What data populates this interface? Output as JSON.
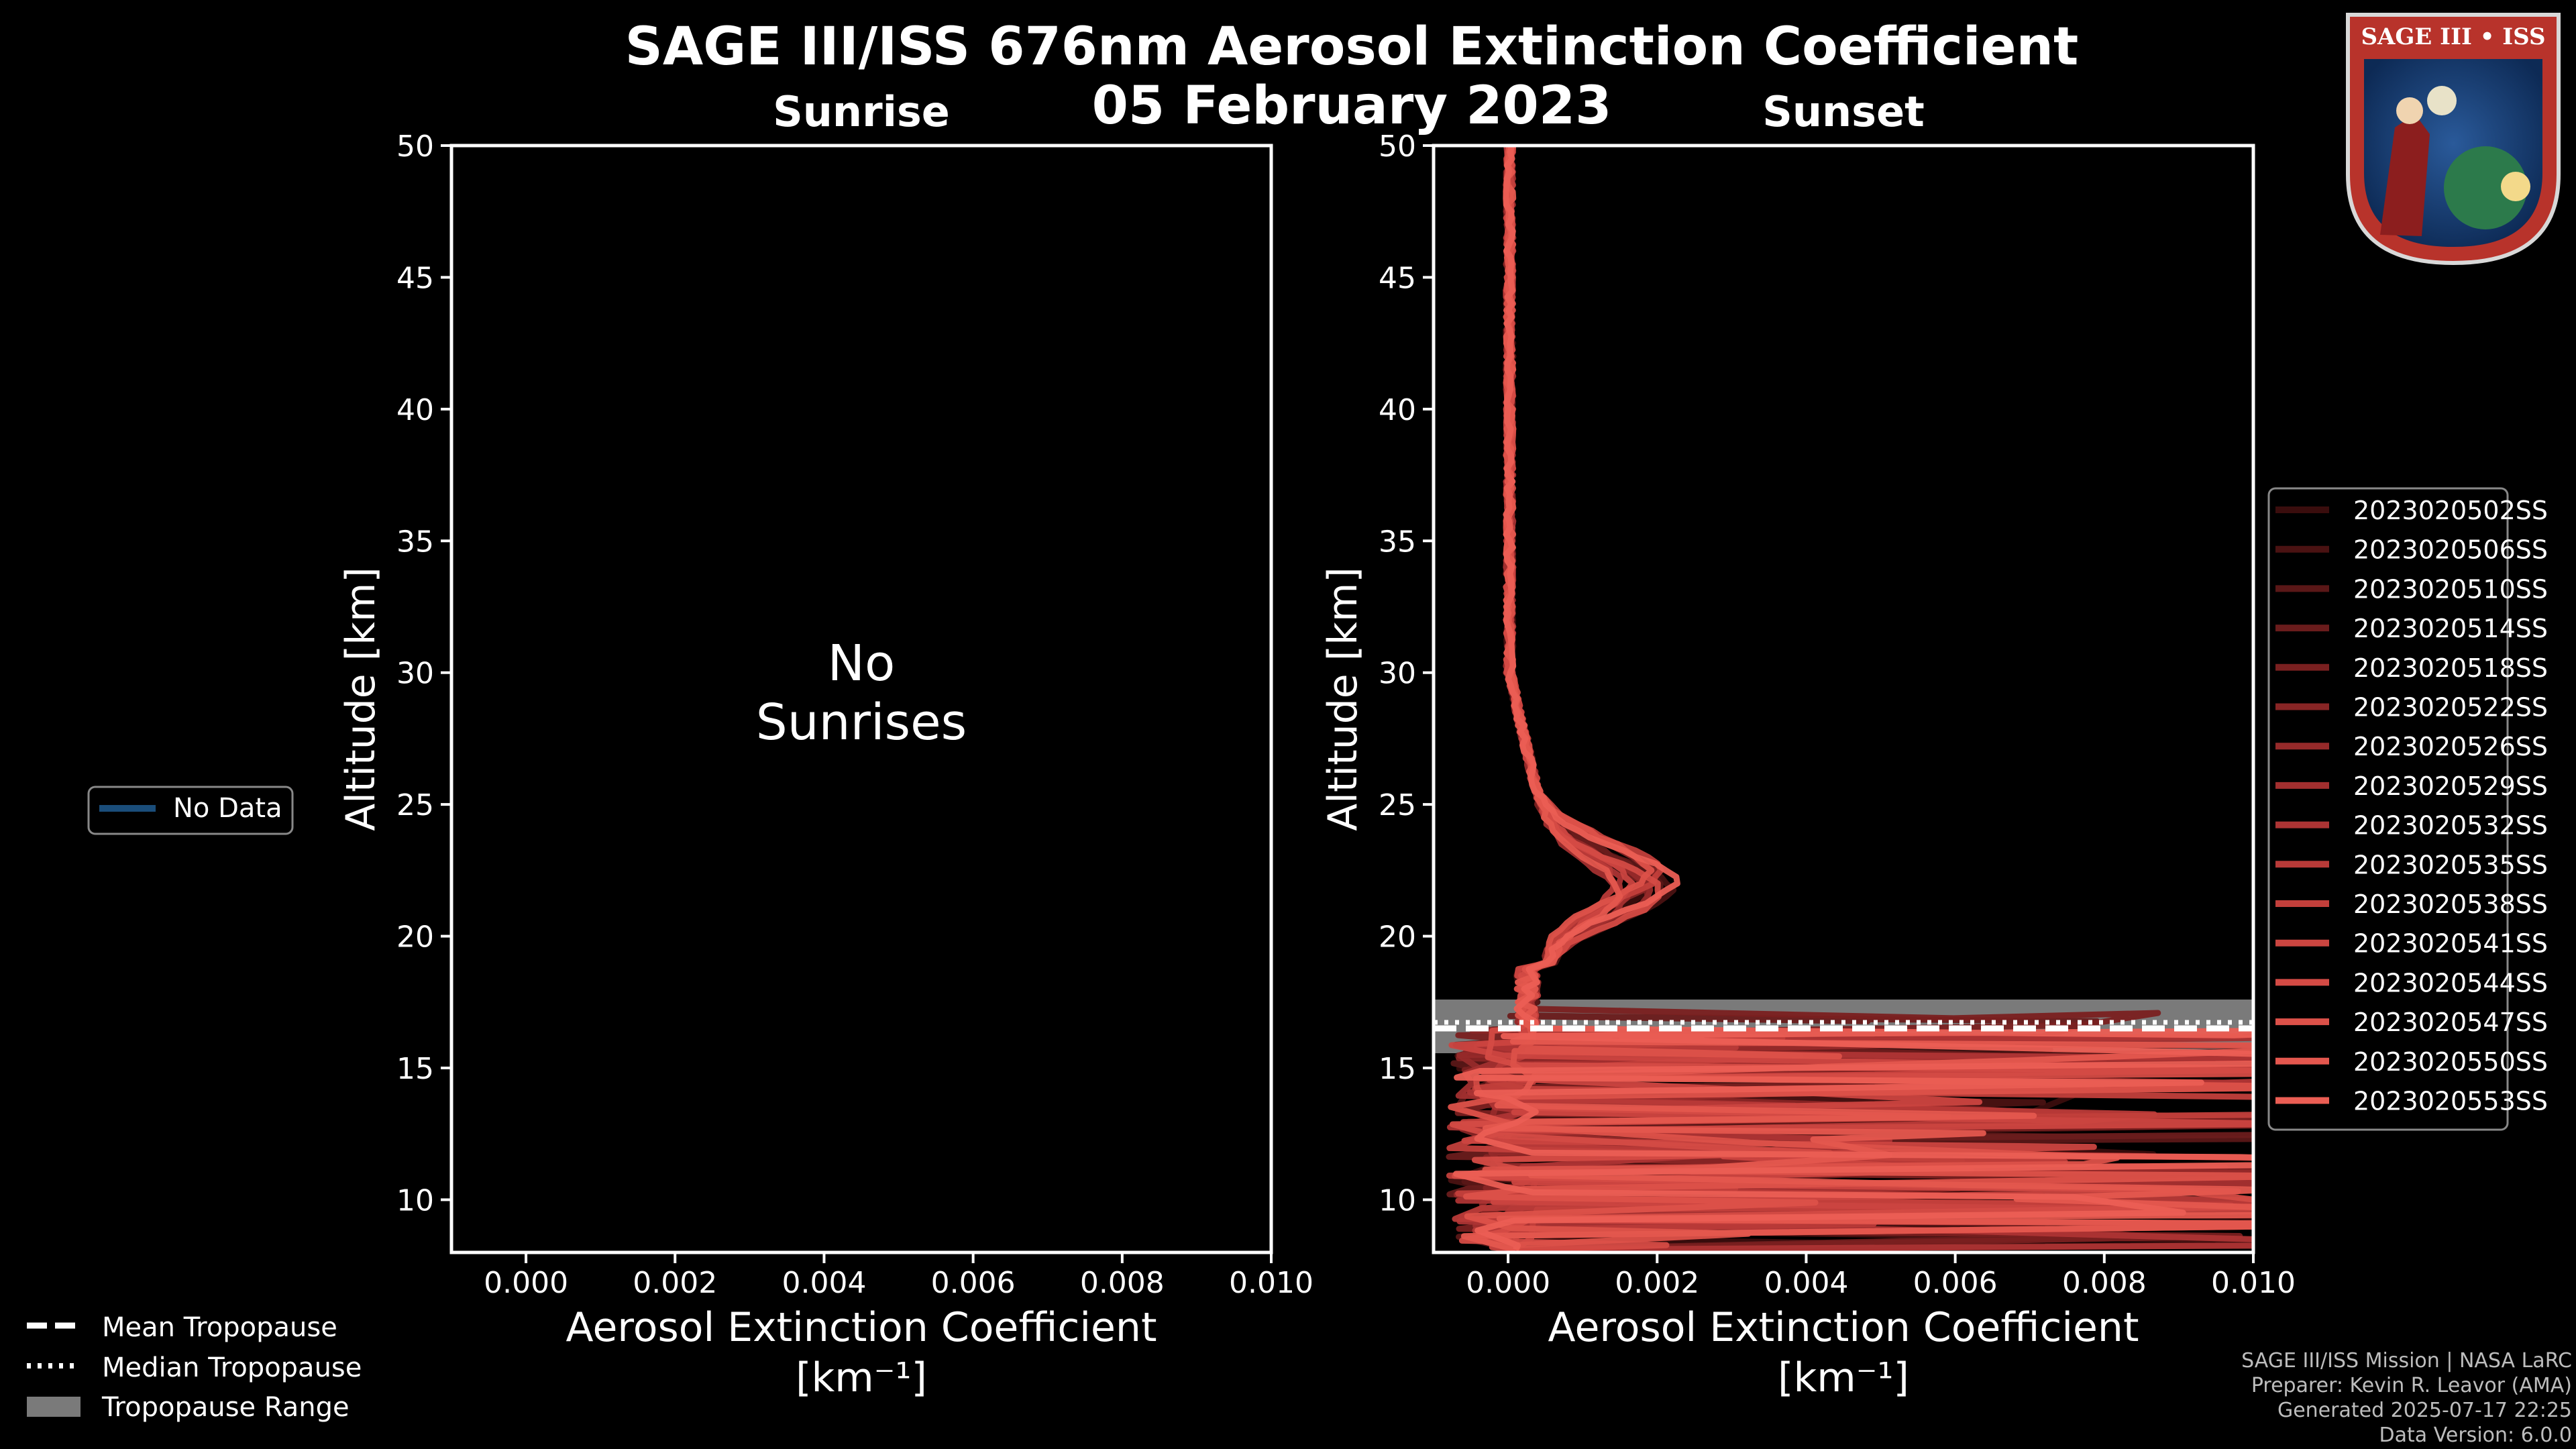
{
  "chart_data": {
    "title": "SAGE III/ISS 676nm Aerosol Extinction Coefficient",
    "date": "05 February 2023",
    "type": "line",
    "panels": [
      {
        "title": "Sunrise",
        "xlabel": "Aerosol Extinction Coefficient",
        "xunit": "[km⁻¹]",
        "ylabel": "Altitude [km]",
        "xlim": [
          -0.001,
          0.01
        ],
        "ylim": [
          8,
          50
        ],
        "xticks": [
          "0.000",
          "0.002",
          "0.004",
          "0.006",
          "0.008",
          "0.010"
        ],
        "yticks": [
          "10",
          "15",
          "20",
          "25",
          "30",
          "35",
          "40",
          "45",
          "50"
        ],
        "empty_message": [
          "No",
          "Sunrises"
        ],
        "legend": [
          {
            "name": "No Data",
            "color": "#1a4d7a"
          }
        ]
      },
      {
        "title": "Sunset",
        "xlabel": "Aerosol Extinction Coefficient",
        "xunit": "[km⁻¹]",
        "ylabel": "Altitude [km]",
        "xlim": [
          -0.001,
          0.01
        ],
        "ylim": [
          8,
          50
        ],
        "xticks": [
          "0.000",
          "0.002",
          "0.004",
          "0.006",
          "0.008",
          "0.010"
        ],
        "yticks": [
          "10",
          "15",
          "20",
          "25",
          "30",
          "35",
          "40",
          "45",
          "50"
        ],
        "tropopause": {
          "mean": 16.6,
          "median": 16.8,
          "range": [
            15.6,
            17.6
          ]
        },
        "series_names": [
          "2023020502SS",
          "2023020506SS",
          "2023020510SS",
          "2023020514SS",
          "2023020518SS",
          "2023020522SS",
          "2023020526SS",
          "2023020529SS",
          "2023020532SS",
          "2023020535SS",
          "2023020538SS",
          "2023020541SS",
          "2023020544SS",
          "2023020547SS",
          "2023020550SS",
          "2023020553SS"
        ],
        "series_colors": [
          "#3a0d0d",
          "#4a1212",
          "#5a1717",
          "#6a1c1c",
          "#7a2020",
          "#882525",
          "#962a2a",
          "#a22f2f",
          "#ad3434",
          "#b83a38",
          "#c23f3b",
          "#cb4540",
          "#d44b45",
          "#dc5149",
          "#e4574e",
          "#eb5e54"
        ]
      }
    ],
    "tropopause_legend": [
      "Mean Tropopause",
      "Median Tropopause",
      "Tropopause Range"
    ]
  },
  "logo": {
    "text": "SAGE III • ISS"
  },
  "footer": {
    "mission": "SAGE III/ISS Mission | NASA LaRC",
    "preparer": "Preparer: Kevin R. Leavor (AMA)",
    "generated": "Generated 2025-07-17 22:25",
    "version": "Data Version: 6.0.0"
  }
}
